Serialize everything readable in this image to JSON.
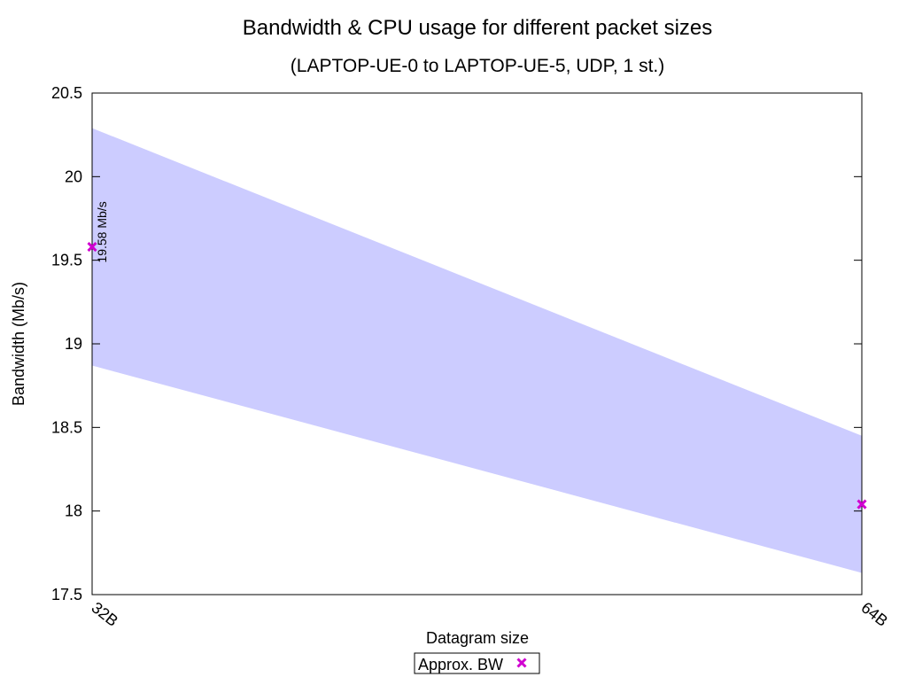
{
  "chart_data": {
    "type": "scatter",
    "title": "Bandwidth & CPU usage for different packet sizes",
    "subtitle": "(LAPTOP-UE-0 to LAPTOP-UE-5, UDP, 1 st.)",
    "xlabel": "Datagram size",
    "ylabel": "Bandwidth (Mb/s)",
    "categories": [
      "32B",
      "64B"
    ],
    "ylim": [
      17.5,
      20.5
    ],
    "yticks": [
      "17.5",
      "18",
      "18.5",
      "19",
      "19.5",
      "20",
      "20.5"
    ],
    "grid": false,
    "legend_position": "bottom-center",
    "series": [
      {
        "name": "Approx. BW",
        "values": [
          19.58,
          18.04
        ],
        "color": "#d000d0",
        "marker": "x"
      }
    ],
    "band": {
      "lower": [
        18.87,
        17.63
      ],
      "upper": [
        20.29,
        18.45
      ],
      "color": "#ccccff"
    },
    "annotations": [
      {
        "text": "19.58 Mb/s",
        "category": "32B",
        "value": 19.58
      }
    ]
  }
}
